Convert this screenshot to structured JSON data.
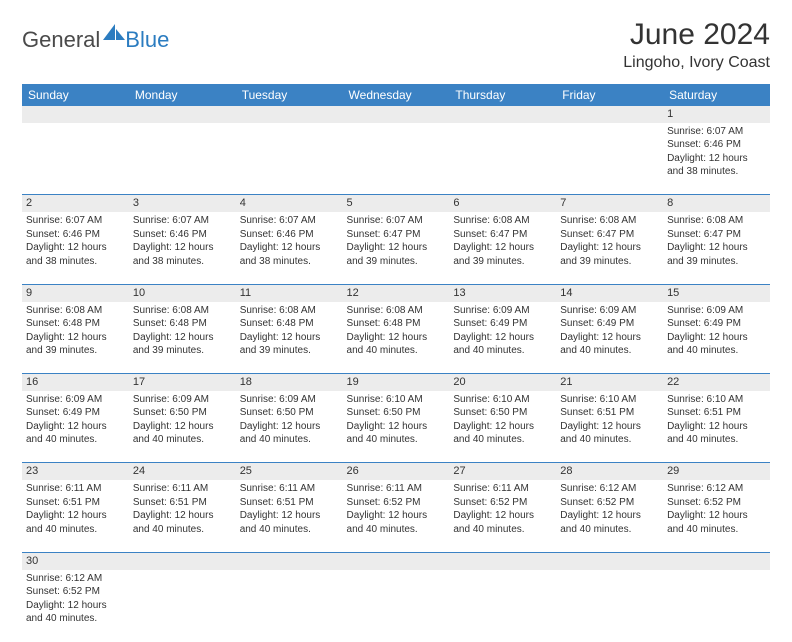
{
  "logo": {
    "textGeneral": "General",
    "textBlue": "Blue"
  },
  "header": {
    "monthTitle": "June 2024",
    "location": "Lingoho, Ivory Coast"
  },
  "colors": {
    "headerBar": "#3b82c4",
    "dayStrip": "#ececec",
    "rowDivider": "#3b82c4",
    "text": "#333333",
    "logoBlue": "#2b7cc0"
  },
  "dayHeaders": [
    "Sunday",
    "Monday",
    "Tuesday",
    "Wednesday",
    "Thursday",
    "Friday",
    "Saturday"
  ],
  "weeks": [
    {
      "nums": [
        "",
        "",
        "",
        "",
        "",
        "",
        "1"
      ],
      "cells": [
        null,
        null,
        null,
        null,
        null,
        null,
        {
          "sunrise": "6:07 AM",
          "sunset": "6:46 PM",
          "daylight": "12 hours and 38 minutes."
        }
      ]
    },
    {
      "nums": [
        "2",
        "3",
        "4",
        "5",
        "6",
        "7",
        "8"
      ],
      "cells": [
        {
          "sunrise": "6:07 AM",
          "sunset": "6:46 PM",
          "daylight": "12 hours and 38 minutes."
        },
        {
          "sunrise": "6:07 AM",
          "sunset": "6:46 PM",
          "daylight": "12 hours and 38 minutes."
        },
        {
          "sunrise": "6:07 AM",
          "sunset": "6:46 PM",
          "daylight": "12 hours and 38 minutes."
        },
        {
          "sunrise": "6:07 AM",
          "sunset": "6:47 PM",
          "daylight": "12 hours and 39 minutes."
        },
        {
          "sunrise": "6:08 AM",
          "sunset": "6:47 PM",
          "daylight": "12 hours and 39 minutes."
        },
        {
          "sunrise": "6:08 AM",
          "sunset": "6:47 PM",
          "daylight": "12 hours and 39 minutes."
        },
        {
          "sunrise": "6:08 AM",
          "sunset": "6:47 PM",
          "daylight": "12 hours and 39 minutes."
        }
      ]
    },
    {
      "nums": [
        "9",
        "10",
        "11",
        "12",
        "13",
        "14",
        "15"
      ],
      "cells": [
        {
          "sunrise": "6:08 AM",
          "sunset": "6:48 PM",
          "daylight": "12 hours and 39 minutes."
        },
        {
          "sunrise": "6:08 AM",
          "sunset": "6:48 PM",
          "daylight": "12 hours and 39 minutes."
        },
        {
          "sunrise": "6:08 AM",
          "sunset": "6:48 PM",
          "daylight": "12 hours and 39 minutes."
        },
        {
          "sunrise": "6:08 AM",
          "sunset": "6:48 PM",
          "daylight": "12 hours and 40 minutes."
        },
        {
          "sunrise": "6:09 AM",
          "sunset": "6:49 PM",
          "daylight": "12 hours and 40 minutes."
        },
        {
          "sunrise": "6:09 AM",
          "sunset": "6:49 PM",
          "daylight": "12 hours and 40 minutes."
        },
        {
          "sunrise": "6:09 AM",
          "sunset": "6:49 PM",
          "daylight": "12 hours and 40 minutes."
        }
      ]
    },
    {
      "nums": [
        "16",
        "17",
        "18",
        "19",
        "20",
        "21",
        "22"
      ],
      "cells": [
        {
          "sunrise": "6:09 AM",
          "sunset": "6:49 PM",
          "daylight": "12 hours and 40 minutes."
        },
        {
          "sunrise": "6:09 AM",
          "sunset": "6:50 PM",
          "daylight": "12 hours and 40 minutes."
        },
        {
          "sunrise": "6:09 AM",
          "sunset": "6:50 PM",
          "daylight": "12 hours and 40 minutes."
        },
        {
          "sunrise": "6:10 AM",
          "sunset": "6:50 PM",
          "daylight": "12 hours and 40 minutes."
        },
        {
          "sunrise": "6:10 AM",
          "sunset": "6:50 PM",
          "daylight": "12 hours and 40 minutes."
        },
        {
          "sunrise": "6:10 AM",
          "sunset": "6:51 PM",
          "daylight": "12 hours and 40 minutes."
        },
        {
          "sunrise": "6:10 AM",
          "sunset": "6:51 PM",
          "daylight": "12 hours and 40 minutes."
        }
      ]
    },
    {
      "nums": [
        "23",
        "24",
        "25",
        "26",
        "27",
        "28",
        "29"
      ],
      "cells": [
        {
          "sunrise": "6:11 AM",
          "sunset": "6:51 PM",
          "daylight": "12 hours and 40 minutes."
        },
        {
          "sunrise": "6:11 AM",
          "sunset": "6:51 PM",
          "daylight": "12 hours and 40 minutes."
        },
        {
          "sunrise": "6:11 AM",
          "sunset": "6:51 PM",
          "daylight": "12 hours and 40 minutes."
        },
        {
          "sunrise": "6:11 AM",
          "sunset": "6:52 PM",
          "daylight": "12 hours and 40 minutes."
        },
        {
          "sunrise": "6:11 AM",
          "sunset": "6:52 PM",
          "daylight": "12 hours and 40 minutes."
        },
        {
          "sunrise": "6:12 AM",
          "sunset": "6:52 PM",
          "daylight": "12 hours and 40 minutes."
        },
        {
          "sunrise": "6:12 AM",
          "sunset": "6:52 PM",
          "daylight": "12 hours and 40 minutes."
        }
      ]
    },
    {
      "nums": [
        "30",
        "",
        "",
        "",
        "",
        "",
        ""
      ],
      "cells": [
        {
          "sunrise": "6:12 AM",
          "sunset": "6:52 PM",
          "daylight": "12 hours and 40 minutes."
        },
        null,
        null,
        null,
        null,
        null,
        null
      ]
    }
  ],
  "labels": {
    "sunrise": "Sunrise: ",
    "sunset": "Sunset: ",
    "daylight": "Daylight: "
  }
}
